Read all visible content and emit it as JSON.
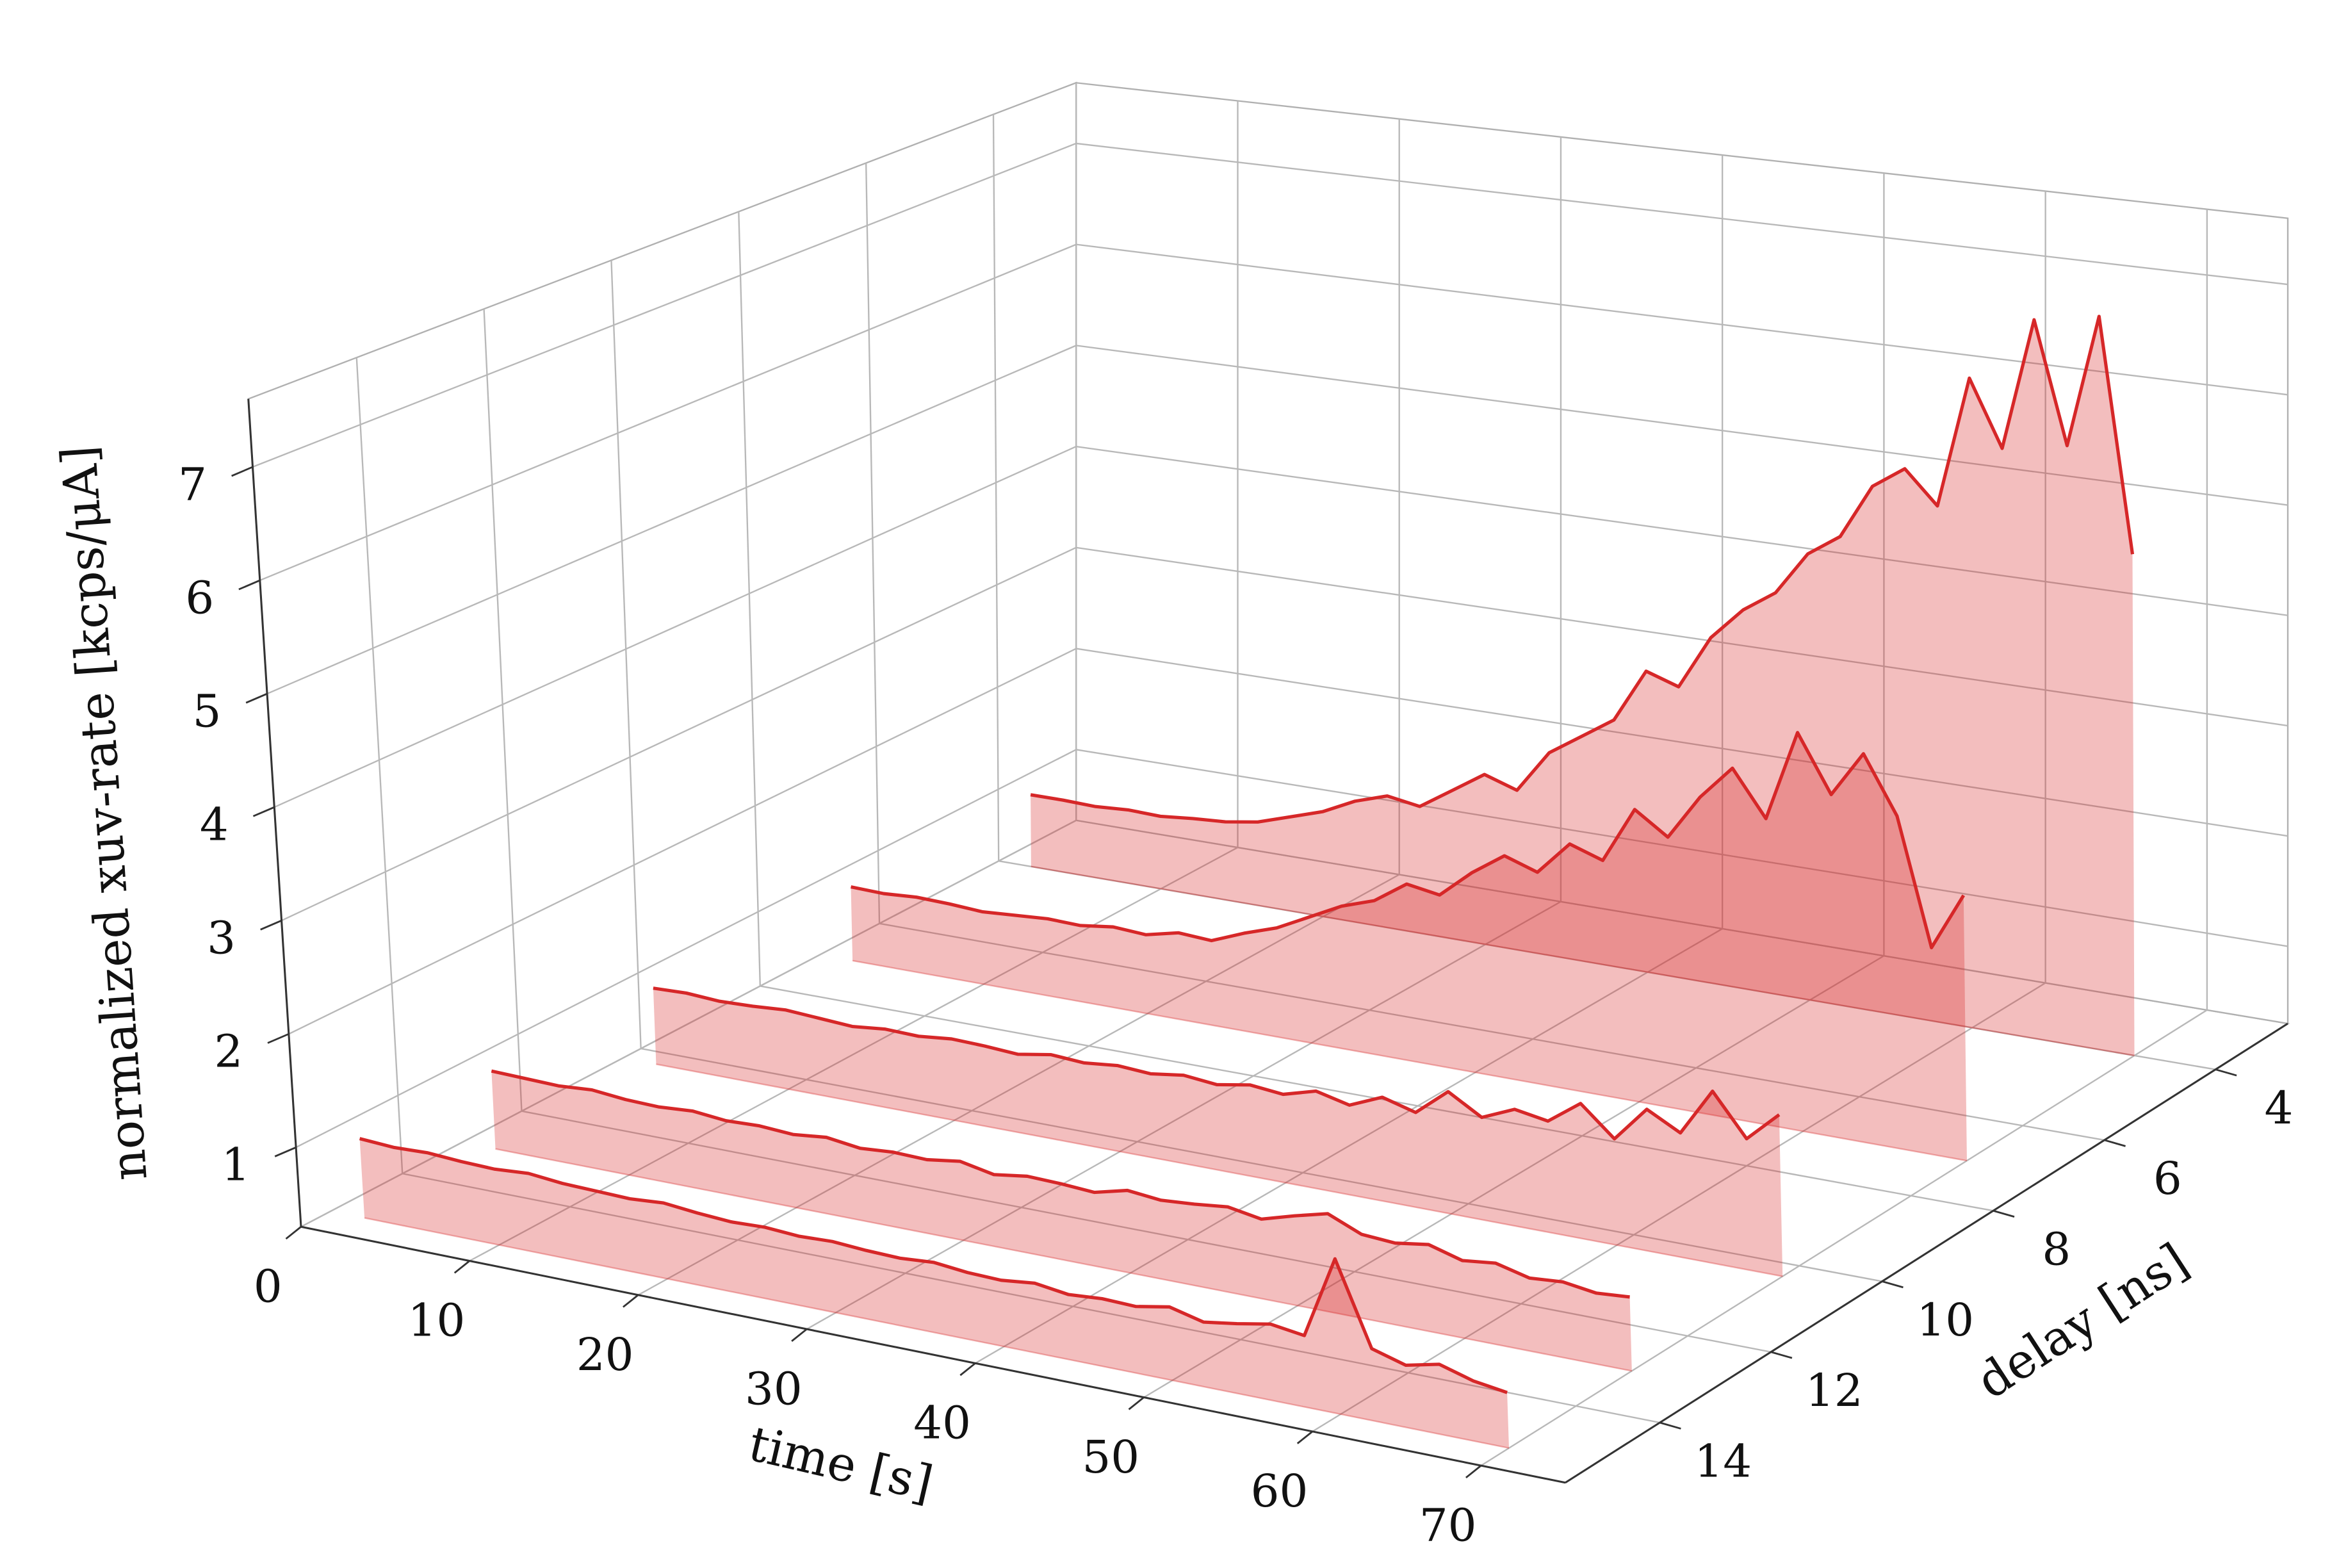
{
  "chart_data": {
    "type": "waterfall",
    "xlabel": "time [s]",
    "ylabel": "delay [ns]",
    "zlabel": "normalized xuv-rate [kcps/μA]",
    "x": [
      2,
      4,
      6,
      8,
      10,
      12,
      14,
      16,
      18,
      20,
      22,
      24,
      26,
      28,
      30,
      32,
      34,
      36,
      38,
      40,
      42,
      44,
      46,
      48,
      50,
      52,
      54,
      56,
      58,
      60,
      62,
      64,
      66,
      68,
      70
    ],
    "xlim": [
      0,
      75
    ],
    "xticks": [
      0,
      10,
      20,
      30,
      40,
      50,
      60,
      70
    ],
    "ylim": [
      2.7,
      15.7
    ],
    "yticks": [
      4,
      6,
      8,
      10,
      12,
      14
    ],
    "zlim": [
      0.3,
      7.6
    ],
    "zticks": [
      1,
      2,
      3,
      4,
      5,
      6,
      7
    ],
    "grid": true,
    "series": [
      {
        "delay": 4,
        "color": "#d62728",
        "values": [
          1.0,
          1.0,
          0.99,
          1.01,
          1.0,
          1.03,
          1.05,
          1.1,
          1.2,
          1.3,
          1.45,
          1.55,
          1.5,
          1.7,
          1.9,
          1.8,
          2.2,
          2.4,
          2.6,
          3.1,
          3.0,
          3.5,
          3.8,
          4.0,
          4.4,
          4.6,
          5.1,
          5.3,
          5.0,
          6.2,
          5.6,
          6.8,
          5.7,
          6.9,
          4.8
        ]
      },
      {
        "delay": 7,
        "color": "#d62728",
        "values": [
          1.0,
          0.99,
          1.01,
          1.0,
          0.98,
          1.0,
          1.02,
          1.01,
          1.05,
          1.03,
          1.1,
          1.08,
          1.2,
          1.3,
          1.45,
          1.6,
          1.7,
          1.9,
          1.85,
          2.1,
          2.3,
          2.2,
          2.5,
          2.4,
          2.9,
          2.7,
          3.1,
          3.4,
          3.0,
          3.8,
          3.3,
          3.7,
          3.2,
          2.1,
          2.6
        ]
      },
      {
        "delay": 10.3,
        "color": "#d62728",
        "values": [
          1.0,
          1.01,
          0.99,
          1.0,
          1.02,
          1.0,
          0.98,
          1.01,
          1.0,
          1.03,
          1.02,
          1.0,
          1.05,
          1.03,
          1.06,
          1.04,
          1.08,
          1.05,
          1.1,
          1.07,
          1.15,
          1.08,
          1.2,
          1.12,
          1.35,
          1.18,
          1.3,
          1.25,
          1.45,
          1.2,
          1.5,
          1.35,
          1.75,
          1.4,
          1.65
        ]
      },
      {
        "delay": 13,
        "color": "#d62728",
        "values": [
          1.0,
          0.99,
          0.98,
          1.0,
          0.97,
          0.96,
          0.98,
          0.95,
          0.96,
          0.94,
          0.97,
          0.93,
          0.95,
          0.94,
          0.98,
          0.92,
          0.96,
          0.95,
          0.93,
          1.0,
          0.97,
          0.99,
          1.02,
          0.97,
          1.05,
          1.12,
          1.0,
          0.98,
          1.02,
          0.94,
          0.97,
          0.9,
          0.92,
          0.88,
          0.9
        ]
      },
      {
        "delay": 15.2,
        "color": "#d62728",
        "values": [
          1.0,
          0.98,
          0.99,
          0.97,
          0.96,
          0.98,
          0.95,
          0.94,
          0.93,
          0.95,
          0.92,
          0.9,
          0.91,
          0.89,
          0.9,
          0.88,
          0.87,
          0.89,
          0.86,
          0.85,
          0.88,
          0.84,
          0.86,
          0.85,
          0.9,
          0.83,
          0.87,
          0.92,
          0.88,
          1.55,
          0.88,
          0.8,
          0.86,
          0.78,
          0.74
        ]
      }
    ]
  }
}
